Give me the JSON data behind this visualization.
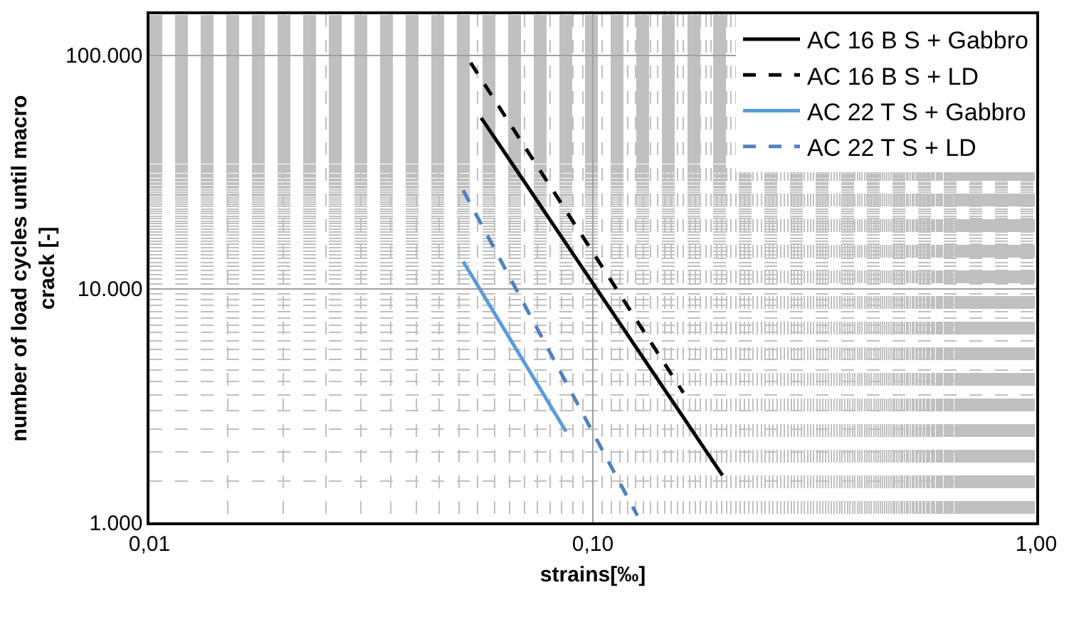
{
  "chart_data": {
    "type": "line",
    "xlabel": "strains[‰]",
    "ylabel": "number of load cycles until macro crack [-]",
    "log": "xy",
    "xlim": [
      0.01,
      1
    ],
    "ylim": [
      1000,
      150000
    ],
    "xticks": [
      {
        "value": 0.01,
        "label": "0,01"
      },
      {
        "value": 0.1,
        "label": "0,10"
      },
      {
        "value": 1,
        "label": "1,00"
      }
    ],
    "yticks": [
      {
        "value": 1000,
        "label": "1.000"
      },
      {
        "value": 10000,
        "label": "10.000"
      },
      {
        "value": 100000,
        "label": "100.000"
      }
    ],
    "grid": true,
    "legend": "top right",
    "marker": "none",
    "series": [
      {
        "name": "AC 16 B S + Gabbro",
        "color": "#000000",
        "line_style": "solid",
        "x": [
          0.056,
          0.196
        ],
        "values": [
          54000,
          1590
        ]
      },
      {
        "name": "AC 16 B S + LD",
        "color": "#000000",
        "line_style": "dashed",
        "x": [
          0.053,
          0.16
        ],
        "values": [
          93000,
          3590
        ]
      },
      {
        "name": "AC 22 T S + Gabbro",
        "color": "#5b9bd5",
        "line_style": "solid",
        "x": [
          0.051,
          0.087
        ],
        "values": [
          13100,
          2450
        ]
      },
      {
        "name": "AC 22 T S + LD",
        "color": "#4f81bd",
        "line_style": "dashed",
        "x": [
          0.051,
          0.126
        ],
        "values": [
          26400,
          1070
        ]
      }
    ]
  }
}
